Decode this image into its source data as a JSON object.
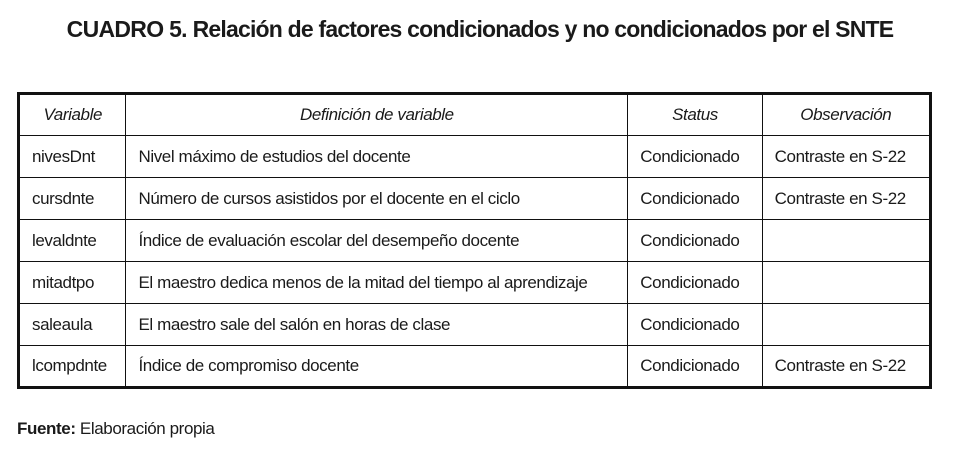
{
  "title": {
    "label": "CUADRO 5.",
    "text": "Relación de factores condicionados y no condicionados por el SNTE"
  },
  "table": {
    "columns": [
      "Variable",
      "Definición de variable",
      "Status",
      "Observación"
    ],
    "rows": [
      {
        "variable": "nivesDnt",
        "definition": "Nivel máximo de estudios del docente",
        "status": "Condicionado",
        "observation": "Contraste en S-22"
      },
      {
        "variable": "cursdnte",
        "definition": "Número de cursos asistidos por el docente en el ciclo",
        "status": "Condicionado",
        "observation": "Contraste en S-22"
      },
      {
        "variable": "levaldnte",
        "definition": "Índice de evaluación escolar del desempeño docente",
        "status": "Condicionado"
      },
      {
        "variable": "mitadtpo",
        "definition": "El maestro dedica menos de la mitad del tiempo al aprendizaje",
        "status": "Condicionado"
      },
      {
        "variable": "saleaula",
        "definition": "El maestro sale del salón en horas de clase",
        "status": "Condicionado"
      },
      {
        "variable": "lcompdnte",
        "definition": "Índice de compromiso docente",
        "status": "Condicionado",
        "observation": "Contraste en S-22"
      }
    ]
  },
  "source": {
    "label": "Fuente:",
    "text": "Elaboración propia"
  }
}
